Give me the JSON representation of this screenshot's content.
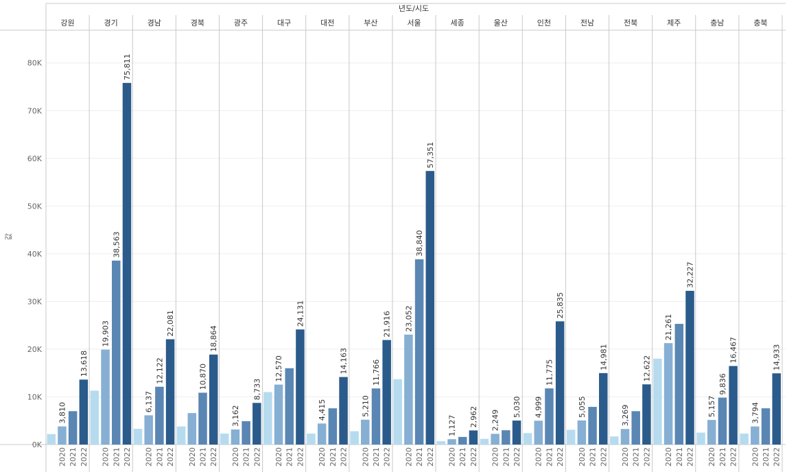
{
  "chart_data": {
    "type": "bar",
    "title": "",
    "column_header_title": "년도/시도",
    "ylabel": "값",
    "xlabel": "",
    "ylim": [
      0,
      86000
    ],
    "yticks": [
      0,
      10000,
      20000,
      30000,
      40000,
      50000,
      60000,
      70000,
      80000
    ],
    "ytick_labels": [
      "0K",
      "10K",
      "20K",
      "30K",
      "40K",
      "50K",
      "60K",
      "70K",
      "80K"
    ],
    "grid": true,
    "colors": [
      "#b6dbef",
      "#86afd3",
      "#5a86b3",
      "#2b5b8b"
    ],
    "grid_color": "#eeeeee",
    "divider_color": "#c8c8c8",
    "label_color": "#333333",
    "groups": [
      {
        "name": "강원",
        "bars": [
          {
            "year": "",
            "value": 2200,
            "label": ""
          },
          {
            "year": "2020",
            "value": 3810,
            "label": "3,810"
          },
          {
            "year": "2021",
            "value": 7000,
            "label": ""
          },
          {
            "year": "2022",
            "value": 13618,
            "label": "13,618"
          }
        ]
      },
      {
        "name": "경기",
        "bars": [
          {
            "year": "",
            "value": 11300,
            "label": ""
          },
          {
            "year": "2020",
            "value": 19903,
            "label": "19,903"
          },
          {
            "year": "2021",
            "value": 38563,
            "label": "38,563"
          },
          {
            "year": "2022",
            "value": 75811,
            "label": "75,811"
          }
        ]
      },
      {
        "name": "경남",
        "bars": [
          {
            "year": "",
            "value": 3300,
            "label": ""
          },
          {
            "year": "2020",
            "value": 6137,
            "label": "6,137"
          },
          {
            "year": "2021",
            "value": 12122,
            "label": "12,122"
          },
          {
            "year": "2022",
            "value": 22081,
            "label": "22,081"
          }
        ]
      },
      {
        "name": "경북",
        "bars": [
          {
            "year": "",
            "value": 3800,
            "label": ""
          },
          {
            "year": "2020",
            "value": 6600,
            "label": ""
          },
          {
            "year": "2021",
            "value": 10870,
            "label": "10,870"
          },
          {
            "year": "2022",
            "value": 18864,
            "label": "18,864"
          }
        ]
      },
      {
        "name": "광주",
        "bars": [
          {
            "year": "",
            "value": 2300,
            "label": ""
          },
          {
            "year": "2020",
            "value": 3162,
            "label": "3,162"
          },
          {
            "year": "2021",
            "value": 4900,
            "label": ""
          },
          {
            "year": "2022",
            "value": 8733,
            "label": "8,733"
          }
        ]
      },
      {
        "name": "대구",
        "bars": [
          {
            "year": "",
            "value": 11000,
            "label": ""
          },
          {
            "year": "2020",
            "value": 12570,
            "label": "12,570"
          },
          {
            "year": "2021",
            "value": 16000,
            "label": ""
          },
          {
            "year": "2022",
            "value": 24131,
            "label": "24,131"
          }
        ]
      },
      {
        "name": "대전",
        "bars": [
          {
            "year": "",
            "value": 2300,
            "label": ""
          },
          {
            "year": "2020",
            "value": 4415,
            "label": "4,415"
          },
          {
            "year": "2021",
            "value": 7600,
            "label": ""
          },
          {
            "year": "2022",
            "value": 14163,
            "label": "14,163"
          }
        ]
      },
      {
        "name": "부산",
        "bars": [
          {
            "year": "",
            "value": 2800,
            "label": ""
          },
          {
            "year": "2020",
            "value": 5210,
            "label": "5,210"
          },
          {
            "year": "2021",
            "value": 11766,
            "label": "11,766"
          },
          {
            "year": "2022",
            "value": 21916,
            "label": "21,916"
          }
        ]
      },
      {
        "name": "서울",
        "bars": [
          {
            "year": "",
            "value": 13700,
            "label": ""
          },
          {
            "year": "2020",
            "value": 23052,
            "label": "23,052"
          },
          {
            "year": "2021",
            "value": 38840,
            "label": "38,840"
          },
          {
            "year": "2022",
            "value": 57351,
            "label": "57,351"
          }
        ]
      },
      {
        "name": "세종",
        "bars": [
          {
            "year": "",
            "value": 700,
            "label": ""
          },
          {
            "year": "2020",
            "value": 1127,
            "label": "1,127"
          },
          {
            "year": "2021",
            "value": 1600,
            "label": ""
          },
          {
            "year": "2022",
            "value": 2962,
            "label": "2,962"
          }
        ]
      },
      {
        "name": "울산",
        "bars": [
          {
            "year": "",
            "value": 1200,
            "label": ""
          },
          {
            "year": "2020",
            "value": 2249,
            "label": "2,249"
          },
          {
            "year": "2021",
            "value": 3000,
            "label": ""
          },
          {
            "year": "2022",
            "value": 5030,
            "label": "5,030"
          }
        ]
      },
      {
        "name": "인천",
        "bars": [
          {
            "year": "",
            "value": 2400,
            "label": ""
          },
          {
            "year": "2020",
            "value": 4999,
            "label": "4,999"
          },
          {
            "year": "2021",
            "value": 11775,
            "label": "11,775"
          },
          {
            "year": "2022",
            "value": 25835,
            "label": "25,835"
          }
        ]
      },
      {
        "name": "전남",
        "bars": [
          {
            "year": "",
            "value": 3100,
            "label": ""
          },
          {
            "year": "2020",
            "value": 5055,
            "label": "5,055"
          },
          {
            "year": "2021",
            "value": 7900,
            "label": ""
          },
          {
            "year": "2022",
            "value": 14981,
            "label": "14,981"
          }
        ]
      },
      {
        "name": "전북",
        "bars": [
          {
            "year": "",
            "value": 1700,
            "label": ""
          },
          {
            "year": "2020",
            "value": 3269,
            "label": "3,269"
          },
          {
            "year": "2021",
            "value": 7000,
            "label": ""
          },
          {
            "year": "2022",
            "value": 12622,
            "label": "12,622"
          }
        ]
      },
      {
        "name": "제주",
        "bars": [
          {
            "year": "",
            "value": 18000,
            "label": ""
          },
          {
            "year": "2020",
            "value": 21261,
            "label": "21,261"
          },
          {
            "year": "2021",
            "value": 25300,
            "label": ""
          },
          {
            "year": "2022",
            "value": 32227,
            "label": "32,227"
          }
        ]
      },
      {
        "name": "충남",
        "bars": [
          {
            "year": "",
            "value": 2500,
            "label": ""
          },
          {
            "year": "2020",
            "value": 5157,
            "label": "5,157"
          },
          {
            "year": "2021",
            "value": 9836,
            "label": "9,836"
          },
          {
            "year": "2022",
            "value": 16467,
            "label": "16,467"
          }
        ]
      },
      {
        "name": "충북",
        "bars": [
          {
            "year": "",
            "value": 2300,
            "label": ""
          },
          {
            "year": "2020",
            "value": 3794,
            "label": "3,794"
          },
          {
            "year": "2021",
            "value": 7600,
            "label": ""
          },
          {
            "year": "2022",
            "value": 14933,
            "label": "14,933"
          }
        ]
      }
    ]
  }
}
